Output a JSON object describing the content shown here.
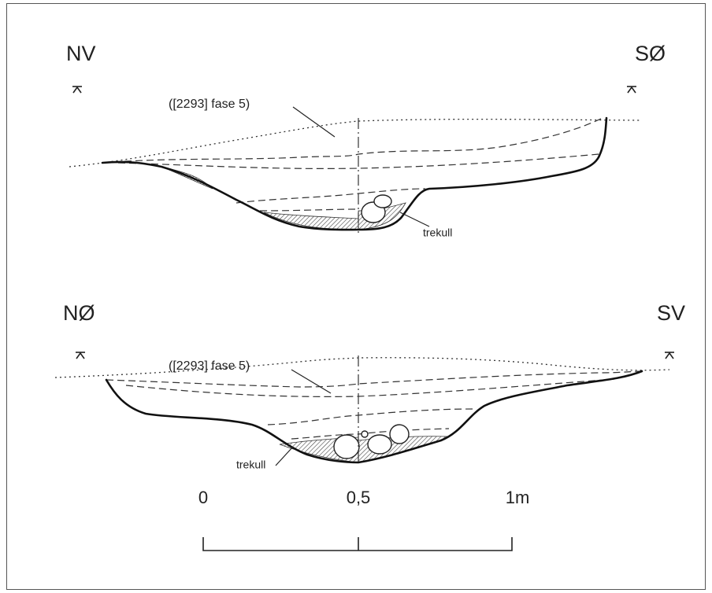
{
  "sections": [
    {
      "left_label": "NV",
      "right_label": "SØ",
      "layer_label": "([2293] fase 5)",
      "charcoal_label": "trekull"
    },
    {
      "left_label": "NØ",
      "right_label": "SV",
      "layer_label": "([2293] fase 5)",
      "charcoal_label": "trekull"
    }
  ],
  "scale": {
    "labels": [
      "0",
      "0,5",
      "1m"
    ]
  }
}
